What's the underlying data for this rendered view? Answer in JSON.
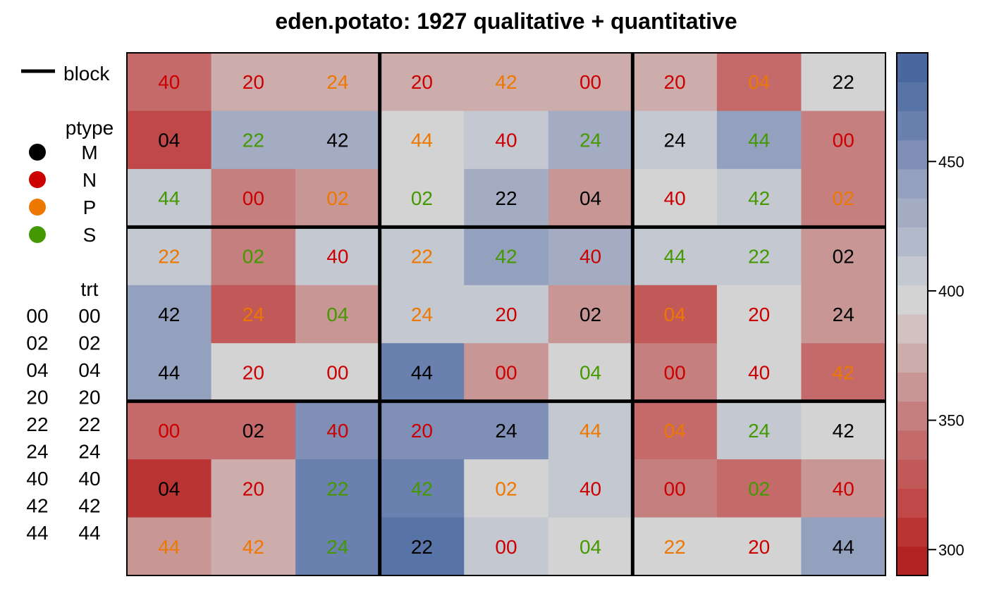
{
  "chart_data": {
    "type": "heatmap",
    "title": "eden.potato: 1927 qualitative + quantitative",
    "rows": 9,
    "cols": 9,
    "ptype_colors": {
      "M": "#000000",
      "N": "#cc0000",
      "P": "#ee7700",
      "S": "#449900"
    },
    "cells": [
      [
        {
          "trt": "40",
          "ptype": "N",
          "value": 345
        },
        {
          "trt": "20",
          "ptype": "N",
          "value": 378
        },
        {
          "trt": "24",
          "ptype": "P",
          "value": 378
        },
        {
          "trt": "20",
          "ptype": "N",
          "value": 378
        },
        {
          "trt": "42",
          "ptype": "P",
          "value": 378
        },
        {
          "trt": "00",
          "ptype": "N",
          "value": 378
        },
        {
          "trt": "20",
          "ptype": "N",
          "value": 378
        },
        {
          "trt": "04",
          "ptype": "P",
          "value": 342
        },
        {
          "trt": "22",
          "ptype": "M",
          "value": 398
        }
      ],
      [
        {
          "trt": "04",
          "ptype": "M",
          "value": 318
        },
        {
          "trt": "22",
          "ptype": "S",
          "value": 425
        },
        {
          "trt": "42",
          "ptype": "M",
          "value": 425
        },
        {
          "trt": "44",
          "ptype": "P",
          "value": 398
        },
        {
          "trt": "40",
          "ptype": "N",
          "value": 413
        },
        {
          "trt": "24",
          "ptype": "S",
          "value": 425
        },
        {
          "trt": "24",
          "ptype": "M",
          "value": 412
        },
        {
          "trt": "44",
          "ptype": "S",
          "value": 438
        },
        {
          "trt": "00",
          "ptype": "N",
          "value": 355
        }
      ],
      [
        {
          "trt": "44",
          "ptype": "S",
          "value": 412
        },
        {
          "trt": "00",
          "ptype": "N",
          "value": 355
        },
        {
          "trt": "02",
          "ptype": "P",
          "value": 367
        },
        {
          "trt": "02",
          "ptype": "S",
          "value": 398
        },
        {
          "trt": "22",
          "ptype": "M",
          "value": 425
        },
        {
          "trt": "04",
          "ptype": "M",
          "value": 367
        },
        {
          "trt": "40",
          "ptype": "N",
          "value": 398
        },
        {
          "trt": "42",
          "ptype": "S",
          "value": 412
        },
        {
          "trt": "02",
          "ptype": "P",
          "value": 355
        }
      ],
      [
        {
          "trt": "22",
          "ptype": "P",
          "value": 412
        },
        {
          "trt": "02",
          "ptype": "S",
          "value": 355
        },
        {
          "trt": "40",
          "ptype": "N",
          "value": 412
        },
        {
          "trt": "22",
          "ptype": "P",
          "value": 412
        },
        {
          "trt": "42",
          "ptype": "S",
          "value": 438
        },
        {
          "trt": "40",
          "ptype": "N",
          "value": 425
        },
        {
          "trt": "44",
          "ptype": "S",
          "value": 412
        },
        {
          "trt": "22",
          "ptype": "S",
          "value": 412
        },
        {
          "trt": "02",
          "ptype": "M",
          "value": 367
        }
      ],
      [
        {
          "trt": "42",
          "ptype": "M",
          "value": 438
        },
        {
          "trt": "24",
          "ptype": "P",
          "value": 330
        },
        {
          "trt": "04",
          "ptype": "S",
          "value": 367
        },
        {
          "trt": "24",
          "ptype": "P",
          "value": 412
        },
        {
          "trt": "20",
          "ptype": "N",
          "value": 412
        },
        {
          "trt": "02",
          "ptype": "M",
          "value": 367
        },
        {
          "trt": "04",
          "ptype": "P",
          "value": 330
        },
        {
          "trt": "20",
          "ptype": "N",
          "value": 398
        },
        {
          "trt": "24",
          "ptype": "M",
          "value": 367
        }
      ],
      [
        {
          "trt": "44",
          "ptype": "M",
          "value": 438
        },
        {
          "trt": "20",
          "ptype": "N",
          "value": 398
        },
        {
          "trt": "00",
          "ptype": "N",
          "value": 398
        },
        {
          "trt": "44",
          "ptype": "M",
          "value": 465
        },
        {
          "trt": "00",
          "ptype": "N",
          "value": 367
        },
        {
          "trt": "04",
          "ptype": "S",
          "value": 398
        },
        {
          "trt": "00",
          "ptype": "N",
          "value": 355
        },
        {
          "trt": "40",
          "ptype": "N",
          "value": 398
        },
        {
          "trt": "42",
          "ptype": "P",
          "value": 345
        }
      ],
      [
        {
          "trt": "00",
          "ptype": "N",
          "value": 342
        },
        {
          "trt": "02",
          "ptype": "M",
          "value": 342
        },
        {
          "trt": "40",
          "ptype": "N",
          "value": 452
        },
        {
          "trt": "20",
          "ptype": "N",
          "value": 452
        },
        {
          "trt": "24",
          "ptype": "M",
          "value": 452
        },
        {
          "trt": "44",
          "ptype": "P",
          "value": 412
        },
        {
          "trt": "04",
          "ptype": "P",
          "value": 342
        },
        {
          "trt": "24",
          "ptype": "S",
          "value": 412
        },
        {
          "trt": "42",
          "ptype": "M",
          "value": 398
        }
      ],
      [
        {
          "trt": "04",
          "ptype": "M",
          "value": 305
        },
        {
          "trt": "20",
          "ptype": "N",
          "value": 378
        },
        {
          "trt": "22",
          "ptype": "S",
          "value": 465
        },
        {
          "trt": "42",
          "ptype": "S",
          "value": 465
        },
        {
          "trt": "02",
          "ptype": "P",
          "value": 398
        },
        {
          "trt": "40",
          "ptype": "N",
          "value": 412
        },
        {
          "trt": "00",
          "ptype": "N",
          "value": 355
        },
        {
          "trt": "02",
          "ptype": "S",
          "value": 342
        },
        {
          "trt": "40",
          "ptype": "N",
          "value": 367
        }
      ],
      [
        {
          "trt": "44",
          "ptype": "P",
          "value": 367
        },
        {
          "trt": "42",
          "ptype": "P",
          "value": 378
        },
        {
          "trt": "24",
          "ptype": "S",
          "value": 465
        },
        {
          "trt": "22",
          "ptype": "M",
          "value": 478
        },
        {
          "trt": "00",
          "ptype": "N",
          "value": 412
        },
        {
          "trt": "04",
          "ptype": "S",
          "value": 398
        },
        {
          "trt": "22",
          "ptype": "P",
          "value": 398
        },
        {
          "trt": "20",
          "ptype": "N",
          "value": 398
        },
        {
          "trt": "44",
          "ptype": "M",
          "value": 438
        }
      ]
    ],
    "block_legend_label": "block",
    "ptype_legend": {
      "title": "ptype",
      "items": [
        "M",
        "N",
        "P",
        "S"
      ]
    },
    "trt_legend": {
      "title": "trt",
      "items": [
        [
          "00",
          "00"
        ],
        [
          "02",
          "02"
        ],
        [
          "04",
          "04"
        ],
        [
          "20",
          "20"
        ],
        [
          "22",
          "22"
        ],
        [
          "24",
          "24"
        ],
        [
          "40",
          "40"
        ],
        [
          "42",
          "42"
        ],
        [
          "44",
          "44"
        ]
      ]
    },
    "colorbar": {
      "range": [
        290,
        492
      ],
      "ticks": [
        300,
        350,
        400,
        450
      ],
      "bins": [
        "#b22222",
        "#bb3434",
        "#c04848",
        "#c25959",
        "#c46a6a",
        "#c57f7f",
        "#c99696",
        "#cdacac",
        "#d3c0c0",
        "#d3d3d3",
        "#c4c8d1",
        "#b2b9cb",
        "#a3acc3",
        "#93a1be",
        "#7f8fb6",
        "#6a80ae",
        "#5873a5",
        "#4b67a0"
      ]
    }
  }
}
